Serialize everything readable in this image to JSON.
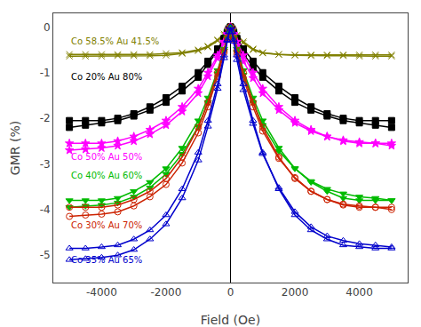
{
  "chart_data": {
    "type": "line",
    "xlabel": "Field (Oe)",
    "ylabel": "GMR (%)",
    "xlim": [
      -5500,
      5500
    ],
    "ylim": [
      -5.6,
      0.3
    ],
    "xticks": [
      -4000,
      -2000,
      0,
      2000,
      4000
    ],
    "yticks": [
      0,
      -1,
      -2,
      -3,
      -4,
      -5
    ],
    "grid": false,
    "background_color": "#ffffff",
    "reference_lines": [
      {
        "x": 0,
        "color": "#000000"
      }
    ],
    "series": [
      {
        "name": "Co 58.5% Au 41.5%",
        "color": "#808000",
        "marker": "x-thin-open",
        "upper_x": [
          -5000,
          -4500,
          -4000,
          -3500,
          -3000,
          -2500,
          -2000,
          -1500,
          -1000,
          -700,
          -400,
          -200,
          -100,
          -50,
          0,
          50,
          100,
          200,
          400,
          700,
          1000,
          1500,
          2000,
          2500,
          3000,
          3500,
          4000,
          4500,
          5000
        ],
        "upper_values": [
          -0.6,
          -0.6,
          -0.6,
          -0.6,
          -0.6,
          -0.6,
          -0.58,
          -0.56,
          -0.5,
          -0.42,
          -0.28,
          -0.15,
          -0.08,
          -0.03,
          0.0,
          -0.03,
          -0.08,
          -0.18,
          -0.32,
          -0.48,
          -0.56,
          -0.6,
          -0.62,
          -0.63,
          -0.63,
          -0.63,
          -0.64,
          -0.64,
          -0.64
        ],
        "lower_x": [
          -5000,
          -4500,
          -4000,
          -3500,
          -3000,
          -2500,
          -2000,
          -1500,
          -1000,
          -700,
          -400,
          -200,
          -100,
          -50,
          0,
          50,
          100,
          200,
          400,
          700,
          1000,
          1500,
          2000,
          2500,
          3000,
          3500,
          4000,
          4500,
          5000
        ],
        "lower_values": [
          -0.64,
          -0.64,
          -0.64,
          -0.63,
          -0.63,
          -0.63,
          -0.62,
          -0.58,
          -0.52,
          -0.44,
          -0.3,
          -0.18,
          -0.1,
          -0.04,
          0.0,
          -0.04,
          -0.1,
          -0.2,
          -0.35,
          -0.5,
          -0.57,
          -0.6,
          -0.61,
          -0.61,
          -0.61,
          -0.61,
          -0.61,
          -0.61,
          -0.61
        ]
      },
      {
        "name": "Co 20% Au 80%",
        "color": "#000000",
        "marker": "square",
        "upper_x": [
          -5000,
          -4500,
          -4000,
          -3500,
          -3000,
          -2500,
          -2000,
          -1500,
          -1000,
          -700,
          -400,
          -200,
          -100,
          -50,
          0,
          50,
          100,
          200,
          400,
          700,
          1000,
          1500,
          2000,
          2500,
          3000,
          3500,
          4000,
          4500,
          5000
        ],
        "upper_values": [
          -2.05,
          -2.05,
          -2.05,
          -2.0,
          -1.9,
          -1.75,
          -1.55,
          -1.3,
          -1.0,
          -0.75,
          -0.48,
          -0.25,
          -0.12,
          -0.05,
          0.0,
          -0.05,
          -0.15,
          -0.3,
          -0.58,
          -0.88,
          -1.1,
          -1.4,
          -1.65,
          -1.82,
          -1.95,
          -2.05,
          -2.1,
          -2.15,
          -2.2
        ],
        "lower_x": [
          -5000,
          -4500,
          -4000,
          -3500,
          -3000,
          -2500,
          -2000,
          -1500,
          -1000,
          -700,
          -400,
          -200,
          -100,
          -50,
          0,
          50,
          100,
          200,
          400,
          700,
          1000,
          1500,
          2000,
          2500,
          3000,
          3500,
          4000,
          4500,
          5000
        ],
        "lower_values": [
          -2.2,
          -2.15,
          -2.1,
          -2.05,
          -1.95,
          -1.82,
          -1.65,
          -1.4,
          -1.1,
          -0.82,
          -0.52,
          -0.28,
          -0.14,
          -0.05,
          0.0,
          -0.05,
          -0.12,
          -0.25,
          -0.48,
          -0.75,
          -1.0,
          -1.3,
          -1.55,
          -1.75,
          -1.9,
          -2.0,
          -2.05,
          -2.05,
          -2.05
        ]
      },
      {
        "name": "Co 50% Au 50%",
        "color": "#ff00ff",
        "marker": "star",
        "upper_x": [
          -5000,
          -4500,
          -4000,
          -3500,
          -3000,
          -2500,
          -2000,
          -1500,
          -1000,
          -700,
          -400,
          -200,
          -100,
          -50,
          0,
          50,
          100,
          200,
          400,
          700,
          1000,
          1500,
          2000,
          2500,
          3000,
          3500,
          4000,
          4500,
          5000
        ],
        "upper_values": [
          -2.55,
          -2.55,
          -2.55,
          -2.5,
          -2.4,
          -2.25,
          -2.05,
          -1.75,
          -1.35,
          -1.0,
          -0.62,
          -0.32,
          -0.15,
          -0.06,
          0.0,
          -0.06,
          -0.18,
          -0.4,
          -0.75,
          -1.12,
          -1.45,
          -1.82,
          -2.1,
          -2.28,
          -2.4,
          -2.48,
          -2.52,
          -2.55,
          -2.6
        ],
        "lower_x": [
          -5000,
          -4500,
          -4000,
          -3500,
          -3000,
          -2500,
          -2000,
          -1500,
          -1000,
          -700,
          -400,
          -200,
          -100,
          -50,
          0,
          50,
          100,
          200,
          400,
          700,
          1000,
          1500,
          2000,
          2500,
          3000,
          3500,
          4000,
          4500,
          5000
        ],
        "lower_values": [
          -2.7,
          -2.68,
          -2.65,
          -2.6,
          -2.5,
          -2.35,
          -2.15,
          -1.85,
          -1.45,
          -1.08,
          -0.68,
          -0.35,
          -0.17,
          -0.07,
          0.0,
          -0.07,
          -0.15,
          -0.32,
          -0.62,
          -1.0,
          -1.35,
          -1.75,
          -2.05,
          -2.25,
          -2.4,
          -2.5,
          -2.55,
          -2.55,
          -2.55
        ]
      },
      {
        "name": "Co 40% Au 60%",
        "color": "#00bb00",
        "marker": "triangle-down",
        "upper_x": [
          -5000,
          -4500,
          -4000,
          -3500,
          -3000,
          -2500,
          -2000,
          -1500,
          -1000,
          -700,
          -400,
          -200,
          -100,
          -50,
          0,
          50,
          100,
          200,
          400,
          700,
          1000,
          1500,
          2000,
          2500,
          3000,
          3500,
          4000,
          4500,
          5000
        ],
        "upper_values": [
          -3.8,
          -3.8,
          -3.8,
          -3.75,
          -3.6,
          -3.4,
          -3.1,
          -2.65,
          -2.05,
          -1.55,
          -0.95,
          -0.48,
          -0.22,
          -0.08,
          0.0,
          -0.08,
          -0.25,
          -0.55,
          -1.05,
          -1.65,
          -2.15,
          -2.72,
          -3.1,
          -3.38,
          -3.55,
          -3.65,
          -3.72,
          -3.75,
          -3.8
        ],
        "lower_x": [
          -5000,
          -4500,
          -4000,
          -3500,
          -3000,
          -2500,
          -2000,
          -1500,
          -1000,
          -700,
          -400,
          -200,
          -100,
          -50,
          0,
          50,
          100,
          200,
          400,
          700,
          1000,
          1500,
          2000,
          2500,
          3000,
          3500,
          4000,
          4500,
          5000
        ],
        "lower_values": [
          -3.95,
          -3.92,
          -3.9,
          -3.85,
          -3.72,
          -3.52,
          -3.22,
          -2.78,
          -2.18,
          -1.65,
          -1.02,
          -0.52,
          -0.24,
          -0.09,
          0.0,
          -0.09,
          -0.22,
          -0.48,
          -0.95,
          -1.55,
          -2.05,
          -2.65,
          -3.1,
          -3.4,
          -3.6,
          -3.75,
          -3.8,
          -3.8,
          -3.8
        ]
      },
      {
        "name": "Co 30% Au 70%",
        "color": "#cc2200",
        "marker": "circle-open",
        "upper_x": [
          -5000,
          -4500,
          -4000,
          -3500,
          -3000,
          -2500,
          -2000,
          -1500,
          -1000,
          -700,
          -400,
          -200,
          -100,
          -50,
          0,
          50,
          100,
          200,
          400,
          700,
          1000,
          1500,
          2000,
          2500,
          3000,
          3500,
          4000,
          4500,
          5000
        ],
        "upper_values": [
          -3.95,
          -3.95,
          -3.95,
          -3.9,
          -3.78,
          -3.6,
          -3.32,
          -2.85,
          -2.2,
          -1.65,
          -1.0,
          -0.52,
          -0.24,
          -0.09,
          0.0,
          -0.09,
          -0.28,
          -0.6,
          -1.12,
          -1.75,
          -2.28,
          -2.88,
          -3.3,
          -3.6,
          -3.78,
          -3.88,
          -3.92,
          -3.95,
          -4.0
        ],
        "lower_x": [
          -5000,
          -4500,
          -4000,
          -3500,
          -3000,
          -2500,
          -2000,
          -1500,
          -1000,
          -700,
          -400,
          -200,
          -100,
          -50,
          0,
          50,
          100,
          200,
          400,
          700,
          1000,
          1500,
          2000,
          2500,
          3000,
          3500,
          4000,
          4500,
          5000
        ],
        "lower_values": [
          -4.15,
          -4.12,
          -4.1,
          -4.05,
          -3.92,
          -3.72,
          -3.45,
          -2.98,
          -2.32,
          -1.75,
          -1.08,
          -0.56,
          -0.26,
          -0.1,
          0.0,
          -0.1,
          -0.24,
          -0.52,
          -1.0,
          -1.65,
          -2.2,
          -2.85,
          -3.32,
          -3.6,
          -3.78,
          -3.9,
          -3.95,
          -3.95,
          -3.95
        ]
      },
      {
        "name": "Co 35% Au 65%",
        "color": "#0000cc",
        "marker": "triangle-up-open",
        "upper_x": [
          -5000,
          -4500,
          -4000,
          -3500,
          -3000,
          -2500,
          -2000,
          -1500,
          -1000,
          -700,
          -400,
          -200,
          -100,
          -50,
          0,
          50,
          100,
          200,
          400,
          700,
          1000,
          1500,
          2000,
          2500,
          3000,
          3500,
          4000,
          4500,
          5000
        ],
        "upper_values": [
          -4.85,
          -4.85,
          -4.82,
          -4.78,
          -4.65,
          -4.45,
          -4.12,
          -3.55,
          -2.75,
          -2.05,
          -1.25,
          -0.62,
          -0.28,
          -0.1,
          0.0,
          -0.1,
          -0.32,
          -0.72,
          -1.38,
          -2.12,
          -2.78,
          -3.52,
          -4.05,
          -4.38,
          -4.58,
          -4.68,
          -4.75,
          -4.78,
          -4.82
        ],
        "lower_x": [
          -5000,
          -4500,
          -4000,
          -3500,
          -3000,
          -2500,
          -2000,
          -1500,
          -1000,
          -700,
          -400,
          -200,
          -100,
          -50,
          0,
          50,
          100,
          200,
          400,
          700,
          1000,
          1500,
          2000,
          2500,
          3000,
          3500,
          4000,
          4500,
          5000
        ],
        "lower_values": [
          -5.1,
          -5.08,
          -5.05,
          -5.0,
          -4.88,
          -4.65,
          -4.32,
          -3.75,
          -2.92,
          -2.18,
          -1.35,
          -0.68,
          -0.3,
          -0.11,
          0.0,
          -0.11,
          -0.28,
          -0.62,
          -1.25,
          -2.05,
          -2.75,
          -3.55,
          -4.12,
          -4.45,
          -4.65,
          -4.78,
          -4.82,
          -4.85,
          -4.85
        ]
      }
    ],
    "annotations": [
      {
        "text": "Co 58.5% Au 41.5%",
        "x": -5000,
        "y": -0.32,
        "color": "#808000"
      },
      {
        "text": "Co 20% Au 80%",
        "x": -5000,
        "y": -1.1,
        "color": "#000000"
      },
      {
        "text": "Co 50% Au 50%",
        "x": -5000,
        "y": -2.85,
        "color": "#ff00ff"
      },
      {
        "text": "Co 40% Au 60%",
        "x": -5000,
        "y": -3.25,
        "color": "#00bb00"
      },
      {
        "text": "Co 30% Au 70%",
        "x": -5000,
        "y": -4.35,
        "color": "#cc2200"
      },
      {
        "text": "Co 35% Au 65%",
        "x": -5000,
        "y": -5.1,
        "color": "#0000cc"
      }
    ]
  }
}
